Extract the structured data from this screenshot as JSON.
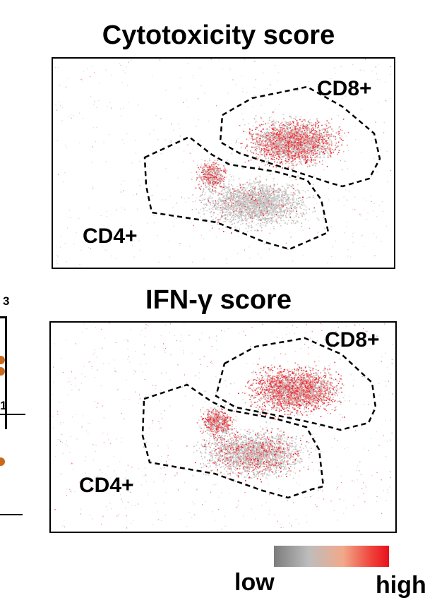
{
  "chart_data": [
    {
      "type": "scatter",
      "title": "Cytotoxicity score",
      "annotations": [
        "CD8+",
        "CD4+"
      ],
      "color_scale": {
        "low_label": "low",
        "high_label": "high",
        "low_color": "#7c7c7c",
        "mid_color": "#bdbdbd",
        "high_color": "#e8101c"
      },
      "clusters": [
        {
          "label": "CD8+",
          "score_level": "high"
        },
        {
          "label": "CD4+",
          "score_level": "low"
        }
      ]
    },
    {
      "type": "scatter",
      "title": "IFN-γ score",
      "annotations": [
        "CD8+",
        "CD4+"
      ],
      "color_scale": {
        "low_label": "low",
        "high_label": "high",
        "low_color": "#7c7c7c",
        "mid_color": "#bdbdbd",
        "high_color": "#e8101c"
      },
      "clusters": [
        {
          "label": "CD8+",
          "score_level": "high"
        },
        {
          "label": "CD4+",
          "score_level": "medium"
        }
      ]
    }
  ],
  "legend": {
    "low": "low",
    "high": "high"
  },
  "left_edge_fragment": {
    "tick_label": "3",
    "tick_label_2": "1",
    "dot_color": "#c8691d"
  }
}
